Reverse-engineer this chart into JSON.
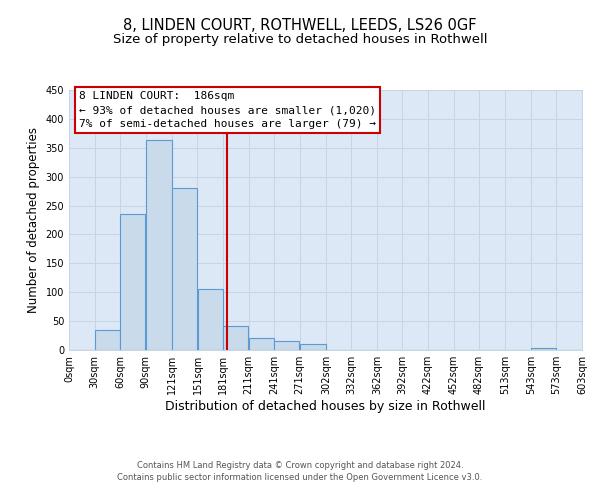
{
  "title": "8, LINDEN COURT, ROTHWELL, LEEDS, LS26 0GF",
  "subtitle": "Size of property relative to detached houses in Rothwell",
  "xlabel": "Distribution of detached houses by size in Rothwell",
  "ylabel": "Number of detached properties",
  "bar_left_edges": [
    0,
    30,
    60,
    90,
    121,
    151,
    181,
    211,
    241,
    271,
    302,
    332,
    362,
    392,
    422,
    452,
    482,
    513,
    543,
    573
  ],
  "bar_widths": [
    30,
    30,
    30,
    31,
    30,
    30,
    30,
    30,
    30,
    31,
    30,
    30,
    30,
    30,
    30,
    30,
    31,
    30,
    30,
    30
  ],
  "bar_heights": [
    0,
    35,
    235,
    363,
    280,
    106,
    41,
    20,
    16,
    10,
    0,
    0,
    0,
    0,
    0,
    0,
    0,
    0,
    4,
    0
  ],
  "bar_facecolor": "#c9daea",
  "bar_edgecolor": "#5b9bd5",
  "bar_linewidth": 0.8,
  "vline_x": 186,
  "vline_color": "#cc0000",
  "vline_linewidth": 1.5,
  "ylim": [
    0,
    450
  ],
  "yticks": [
    0,
    50,
    100,
    150,
    200,
    250,
    300,
    350,
    400,
    450
  ],
  "xtick_labels": [
    "0sqm",
    "30sqm",
    "60sqm",
    "90sqm",
    "121sqm",
    "151sqm",
    "181sqm",
    "211sqm",
    "241sqm",
    "271sqm",
    "302sqm",
    "332sqm",
    "362sqm",
    "392sqm",
    "422sqm",
    "452sqm",
    "482sqm",
    "513sqm",
    "543sqm",
    "573sqm",
    "603sqm"
  ],
  "xtick_positions": [
    0,
    30,
    60,
    90,
    121,
    151,
    181,
    211,
    241,
    271,
    302,
    332,
    362,
    392,
    422,
    452,
    482,
    513,
    543,
    573,
    603
  ],
  "annotation_title": "8 LINDEN COURT:  186sqm",
  "annotation_line1": "← 93% of detached houses are smaller (1,020)",
  "annotation_line2": "7% of semi-detached houses are larger (79) →",
  "annotation_box_color": "#cc0000",
  "annotation_box_facecolor": "white",
  "grid_color": "#c8d4e3",
  "background_color": "#dce8f5",
  "footer_line1": "Contains HM Land Registry data © Crown copyright and database right 2024.",
  "footer_line2": "Contains public sector information licensed under the Open Government Licence v3.0.",
  "title_fontsize": 10.5,
  "subtitle_fontsize": 9.5,
  "xlabel_fontsize": 9,
  "ylabel_fontsize": 8.5,
  "tick_fontsize": 7,
  "annotation_fontsize": 8,
  "footer_fontsize": 6
}
